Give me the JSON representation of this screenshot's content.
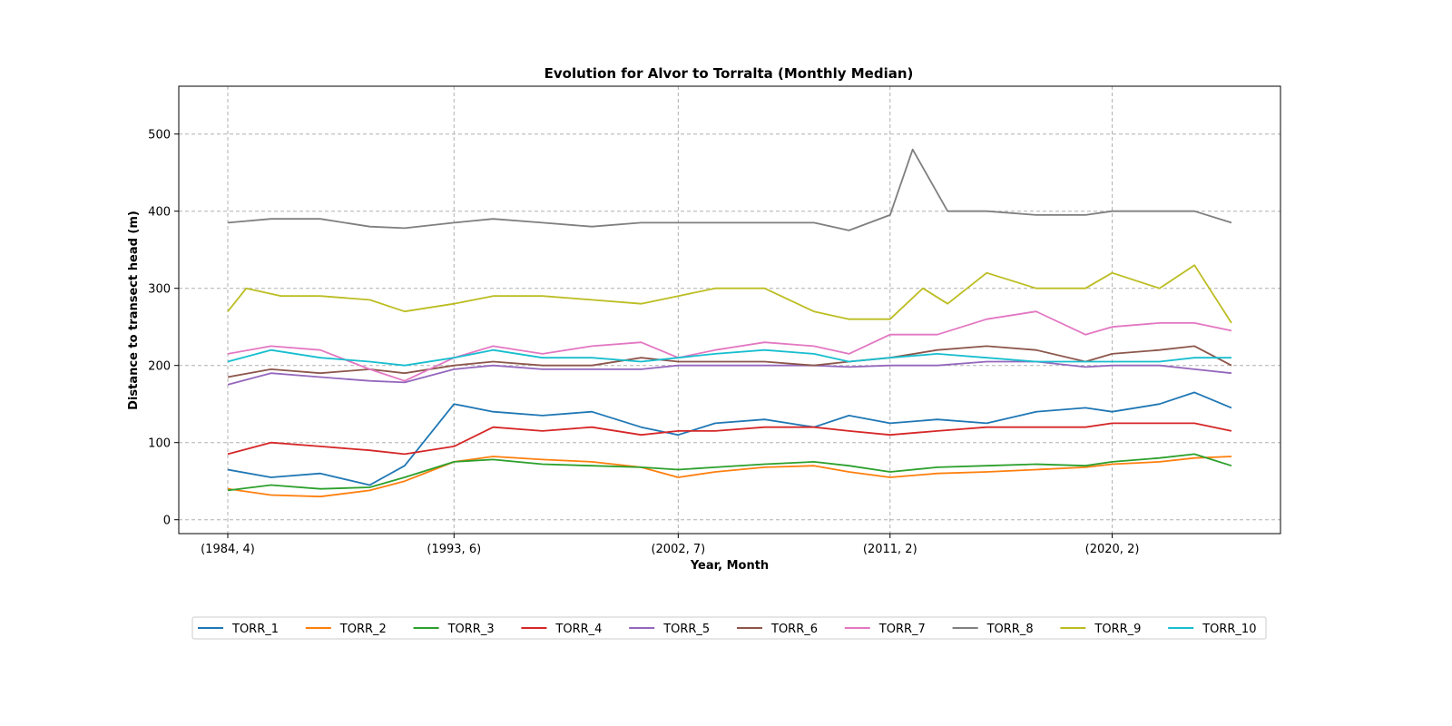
{
  "chart_data": {
    "type": "line",
    "title": "Evolution for Alvor to Torralta (Monthly Median)",
    "xlabel": "Year, Month",
    "ylabel": "Distance to transect head (m)",
    "x_range": [
      "1984-04",
      "2024-12"
    ],
    "ylim": [
      -18,
      562
    ],
    "yticks": [
      0,
      100,
      200,
      300,
      400,
      500
    ],
    "xticks": [
      {
        "date": "1984-04",
        "label": "(1984, 4)"
      },
      {
        "date": "1993-06",
        "label": "(1993, 6)"
      },
      {
        "date": "2002-07",
        "label": "(2002, 7)"
      },
      {
        "date": "2011-02",
        "label": "(2011, 2)"
      },
      {
        "date": "2020-02",
        "label": "(2020, 2)"
      }
    ],
    "grid": true,
    "legend_position": "bottom-center",
    "series": [
      {
        "name": "TORR_1",
        "color": "#1f77b4",
        "x": [
          "1984-04",
          "1986-01",
          "1988-01",
          "1990-01",
          "1991-06",
          "1993-06",
          "1995-01",
          "1997-01",
          "1999-01",
          "2001-01",
          "2002-07",
          "2004-01",
          "2006-01",
          "2008-01",
          "2009-06",
          "2011-02",
          "2013-01",
          "2015-01",
          "2017-01",
          "2019-01",
          "2020-02",
          "2022-01",
          "2023-06",
          "2024-12"
        ],
        "y": [
          65,
          55,
          60,
          45,
          70,
          150,
          140,
          135,
          140,
          120,
          110,
          125,
          130,
          120,
          135,
          125,
          130,
          125,
          140,
          145,
          140,
          150,
          165,
          145
        ]
      },
      {
        "name": "TORR_2",
        "color": "#ff7f0e",
        "x": [
          "1984-04",
          "1986-01",
          "1988-01",
          "1990-01",
          "1991-06",
          "1993-06",
          "1995-01",
          "1997-01",
          "1999-01",
          "2001-01",
          "2002-07",
          "2004-01",
          "2006-01",
          "2008-01",
          "2009-06",
          "2011-02",
          "2013-01",
          "2015-01",
          "2017-01",
          "2019-01",
          "2020-02",
          "2022-01",
          "2023-06",
          "2024-12"
        ],
        "y": [
          40,
          32,
          30,
          38,
          50,
          75,
          82,
          78,
          75,
          68,
          55,
          62,
          68,
          70,
          62,
          55,
          60,
          62,
          65,
          68,
          72,
          75,
          80,
          82
        ]
      },
      {
        "name": "TORR_3",
        "color": "#2ca02c",
        "x": [
          "1984-04",
          "1986-01",
          "1988-01",
          "1990-01",
          "1991-06",
          "1993-06",
          "1995-01",
          "1997-01",
          "1999-01",
          "2001-01",
          "2002-07",
          "2004-01",
          "2006-01",
          "2008-01",
          "2009-06",
          "2011-02",
          "2013-01",
          "2015-01",
          "2017-01",
          "2019-01",
          "2020-02",
          "2022-01",
          "2023-06",
          "2024-12"
        ],
        "y": [
          38,
          45,
          40,
          42,
          55,
          75,
          78,
          72,
          70,
          68,
          65,
          68,
          72,
          75,
          70,
          62,
          68,
          70,
          72,
          70,
          75,
          80,
          85,
          70
        ]
      },
      {
        "name": "TORR_4",
        "color": "#d62728",
        "x": [
          "1984-04",
          "1986-01",
          "1988-01",
          "1990-01",
          "1991-06",
          "1993-06",
          "1995-01",
          "1997-01",
          "1999-01",
          "2001-01",
          "2002-07",
          "2004-01",
          "2006-01",
          "2008-01",
          "2009-06",
          "2011-02",
          "2013-01",
          "2015-01",
          "2017-01",
          "2019-01",
          "2020-02",
          "2022-01",
          "2023-06",
          "2024-12"
        ],
        "y": [
          85,
          100,
          95,
          90,
          85,
          95,
          120,
          115,
          120,
          110,
          115,
          115,
          120,
          120,
          115,
          110,
          115,
          120,
          120,
          120,
          125,
          125,
          125,
          115
        ]
      },
      {
        "name": "TORR_5",
        "color": "#9467bd",
        "x": [
          "1984-04",
          "1986-01",
          "1988-01",
          "1990-01",
          "1991-06",
          "1993-06",
          "1995-01",
          "1997-01",
          "1999-01",
          "2001-01",
          "2002-07",
          "2004-01",
          "2006-01",
          "2008-01",
          "2009-06",
          "2011-02",
          "2013-01",
          "2015-01",
          "2017-01",
          "2019-01",
          "2020-02",
          "2022-01",
          "2023-06",
          "2024-12"
        ],
        "y": [
          175,
          190,
          185,
          180,
          178,
          195,
          200,
          195,
          195,
          195,
          200,
          200,
          200,
          200,
          198,
          200,
          200,
          205,
          205,
          198,
          200,
          200,
          195,
          190
        ]
      },
      {
        "name": "TORR_6",
        "color": "#8c564b",
        "x": [
          "1984-04",
          "1986-01",
          "1988-01",
          "1990-01",
          "1991-06",
          "1993-06",
          "1995-01",
          "1997-01",
          "1999-01",
          "2001-01",
          "2002-07",
          "2004-01",
          "2006-01",
          "2008-01",
          "2009-06",
          "2011-02",
          "2013-01",
          "2015-01",
          "2017-01",
          "2019-01",
          "2020-02",
          "2022-01",
          "2023-06",
          "2024-12"
        ],
        "y": [
          185,
          195,
          190,
          195,
          190,
          200,
          205,
          200,
          200,
          210,
          205,
          205,
          205,
          200,
          205,
          210,
          220,
          225,
          220,
          205,
          215,
          220,
          225,
          200
        ]
      },
      {
        "name": "TORR_7",
        "color": "#e377c2",
        "x": [
          "1984-04",
          "1986-01",
          "1988-01",
          "1990-01",
          "1991-06",
          "1993-06",
          "1995-01",
          "1997-01",
          "1999-01",
          "2001-01",
          "2002-07",
          "2004-01",
          "2006-01",
          "2008-01",
          "2009-06",
          "2011-02",
          "2013-01",
          "2015-01",
          "2017-01",
          "2019-01",
          "2020-02",
          "2022-01",
          "2023-06",
          "2024-12"
        ],
        "y": [
          215,
          225,
          220,
          195,
          180,
          210,
          225,
          215,
          225,
          230,
          210,
          220,
          230,
          225,
          215,
          240,
          240,
          260,
          270,
          240,
          250,
          255,
          255,
          245
        ]
      },
      {
        "name": "TORR_8",
        "color": "#7f7f7f",
        "x": [
          "1984-04",
          "1986-01",
          "1988-01",
          "1990-01",
          "1991-06",
          "1993-06",
          "1995-01",
          "1997-01",
          "1999-01",
          "2001-01",
          "2002-07",
          "2004-01",
          "2006-01",
          "2008-01",
          "2009-06",
          "2011-02",
          "2012-01",
          "2013-06",
          "2015-01",
          "2017-01",
          "2019-01",
          "2020-02",
          "2022-01",
          "2023-06",
          "2024-12"
        ],
        "y": [
          385,
          390,
          390,
          380,
          378,
          385,
          390,
          385,
          380,
          385,
          385,
          385,
          385,
          385,
          375,
          395,
          480,
          400,
          400,
          395,
          395,
          400,
          400,
          400,
          385
        ]
      },
      {
        "name": "TORR_9",
        "color": "#bcbd22",
        "x": [
          "1984-04",
          "1985-01",
          "1986-06",
          "1988-01",
          "1990-01",
          "1991-06",
          "1993-06",
          "1995-01",
          "1997-01",
          "1999-01",
          "2001-01",
          "2002-07",
          "2004-01",
          "2006-01",
          "2008-01",
          "2009-06",
          "2011-02",
          "2012-06",
          "2013-06",
          "2015-01",
          "2017-01",
          "2019-01",
          "2020-02",
          "2022-01",
          "2023-06",
          "2024-12"
        ],
        "y": [
          270,
          300,
          290,
          290,
          285,
          270,
          280,
          290,
          290,
          285,
          280,
          290,
          300,
          300,
          270,
          260,
          260,
          300,
          280,
          320,
          300,
          300,
          320,
          300,
          330,
          255
        ]
      },
      {
        "name": "TORR_10",
        "color": "#17becf",
        "x": [
          "1984-04",
          "1986-01",
          "1988-01",
          "1990-01",
          "1991-06",
          "1993-06",
          "1995-01",
          "1997-01",
          "1999-01",
          "2001-01",
          "2002-07",
          "2004-01",
          "2006-01",
          "2008-01",
          "2009-06",
          "2011-02",
          "2013-01",
          "2015-01",
          "2017-01",
          "2019-01",
          "2020-02",
          "2022-01",
          "2023-06",
          "2024-12"
        ],
        "y": [
          205,
          220,
          210,
          205,
          200,
          210,
          220,
          210,
          210,
          205,
          210,
          215,
          220,
          215,
          205,
          210,
          215,
          210,
          205,
          205,
          205,
          205,
          210,
          210
        ]
      }
    ]
  }
}
